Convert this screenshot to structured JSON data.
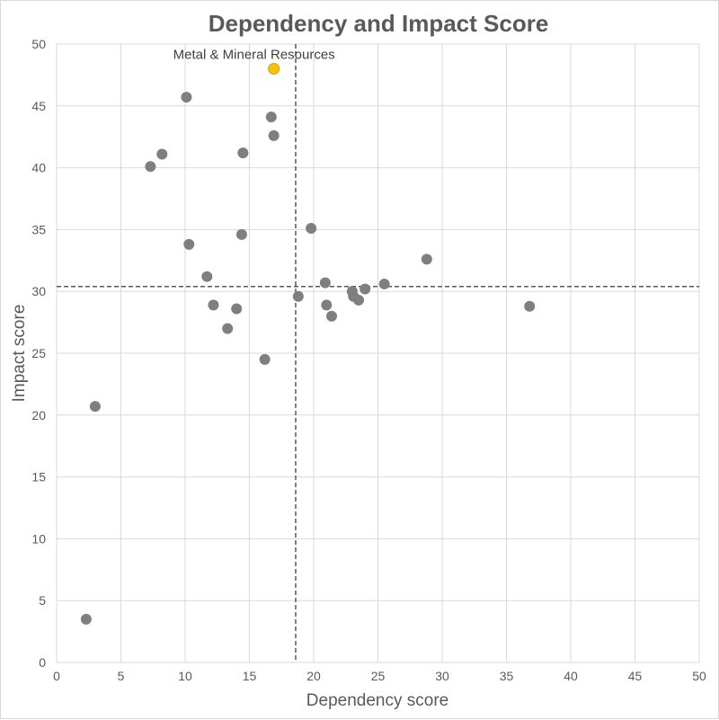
{
  "chart_data": {
    "type": "scatter",
    "title": "Dependency and Impact Score",
    "xlabel": "Dependency score",
    "ylabel": "Impact score",
    "xlim": [
      0,
      50
    ],
    "ylim": [
      0,
      50
    ],
    "xticks": [
      0,
      5,
      10,
      15,
      20,
      25,
      30,
      35,
      40,
      45,
      50
    ],
    "yticks": [
      0,
      5,
      10,
      15,
      20,
      25,
      30,
      35,
      40,
      45,
      50
    ],
    "grid": true,
    "reference_lines": {
      "x": 18.6,
      "y": 30.4
    },
    "colors": {
      "default": "#7f7f7f",
      "highlight": "#ffc000",
      "grid": "#d9d9d9",
      "reference": "#595959"
    },
    "points": [
      {
        "x": 2.3,
        "y": 3.5
      },
      {
        "x": 3.0,
        "y": 20.7
      },
      {
        "x": 7.3,
        "y": 40.1
      },
      {
        "x": 8.2,
        "y": 41.1
      },
      {
        "x": 10.1,
        "y": 45.7
      },
      {
        "x": 10.3,
        "y": 33.8
      },
      {
        "x": 11.7,
        "y": 31.2
      },
      {
        "x": 12.2,
        "y": 28.9
      },
      {
        "x": 13.3,
        "y": 27.0
      },
      {
        "x": 14.0,
        "y": 28.6
      },
      {
        "x": 14.4,
        "y": 34.6
      },
      {
        "x": 14.5,
        "y": 41.2
      },
      {
        "x": 16.2,
        "y": 24.5
      },
      {
        "x": 16.7,
        "y": 44.1
      },
      {
        "x": 16.9,
        "y": 42.6
      },
      {
        "x": 18.8,
        "y": 29.6
      },
      {
        "x": 19.8,
        "y": 35.1
      },
      {
        "x": 20.9,
        "y": 30.7
      },
      {
        "x": 21.0,
        "y": 28.9
      },
      {
        "x": 21.4,
        "y": 28.0
      },
      {
        "x": 23.0,
        "y": 30.0
      },
      {
        "x": 23.1,
        "y": 29.6
      },
      {
        "x": 23.5,
        "y": 29.3
      },
      {
        "x": 24.0,
        "y": 30.2
      },
      {
        "x": 25.5,
        "y": 30.6
      },
      {
        "x": 28.8,
        "y": 32.6
      },
      {
        "x": 36.8,
        "y": 28.8
      },
      {
        "x": 16.9,
        "y": 48.0,
        "label": "Metal & Mineral Resources",
        "highlight": true
      }
    ]
  }
}
